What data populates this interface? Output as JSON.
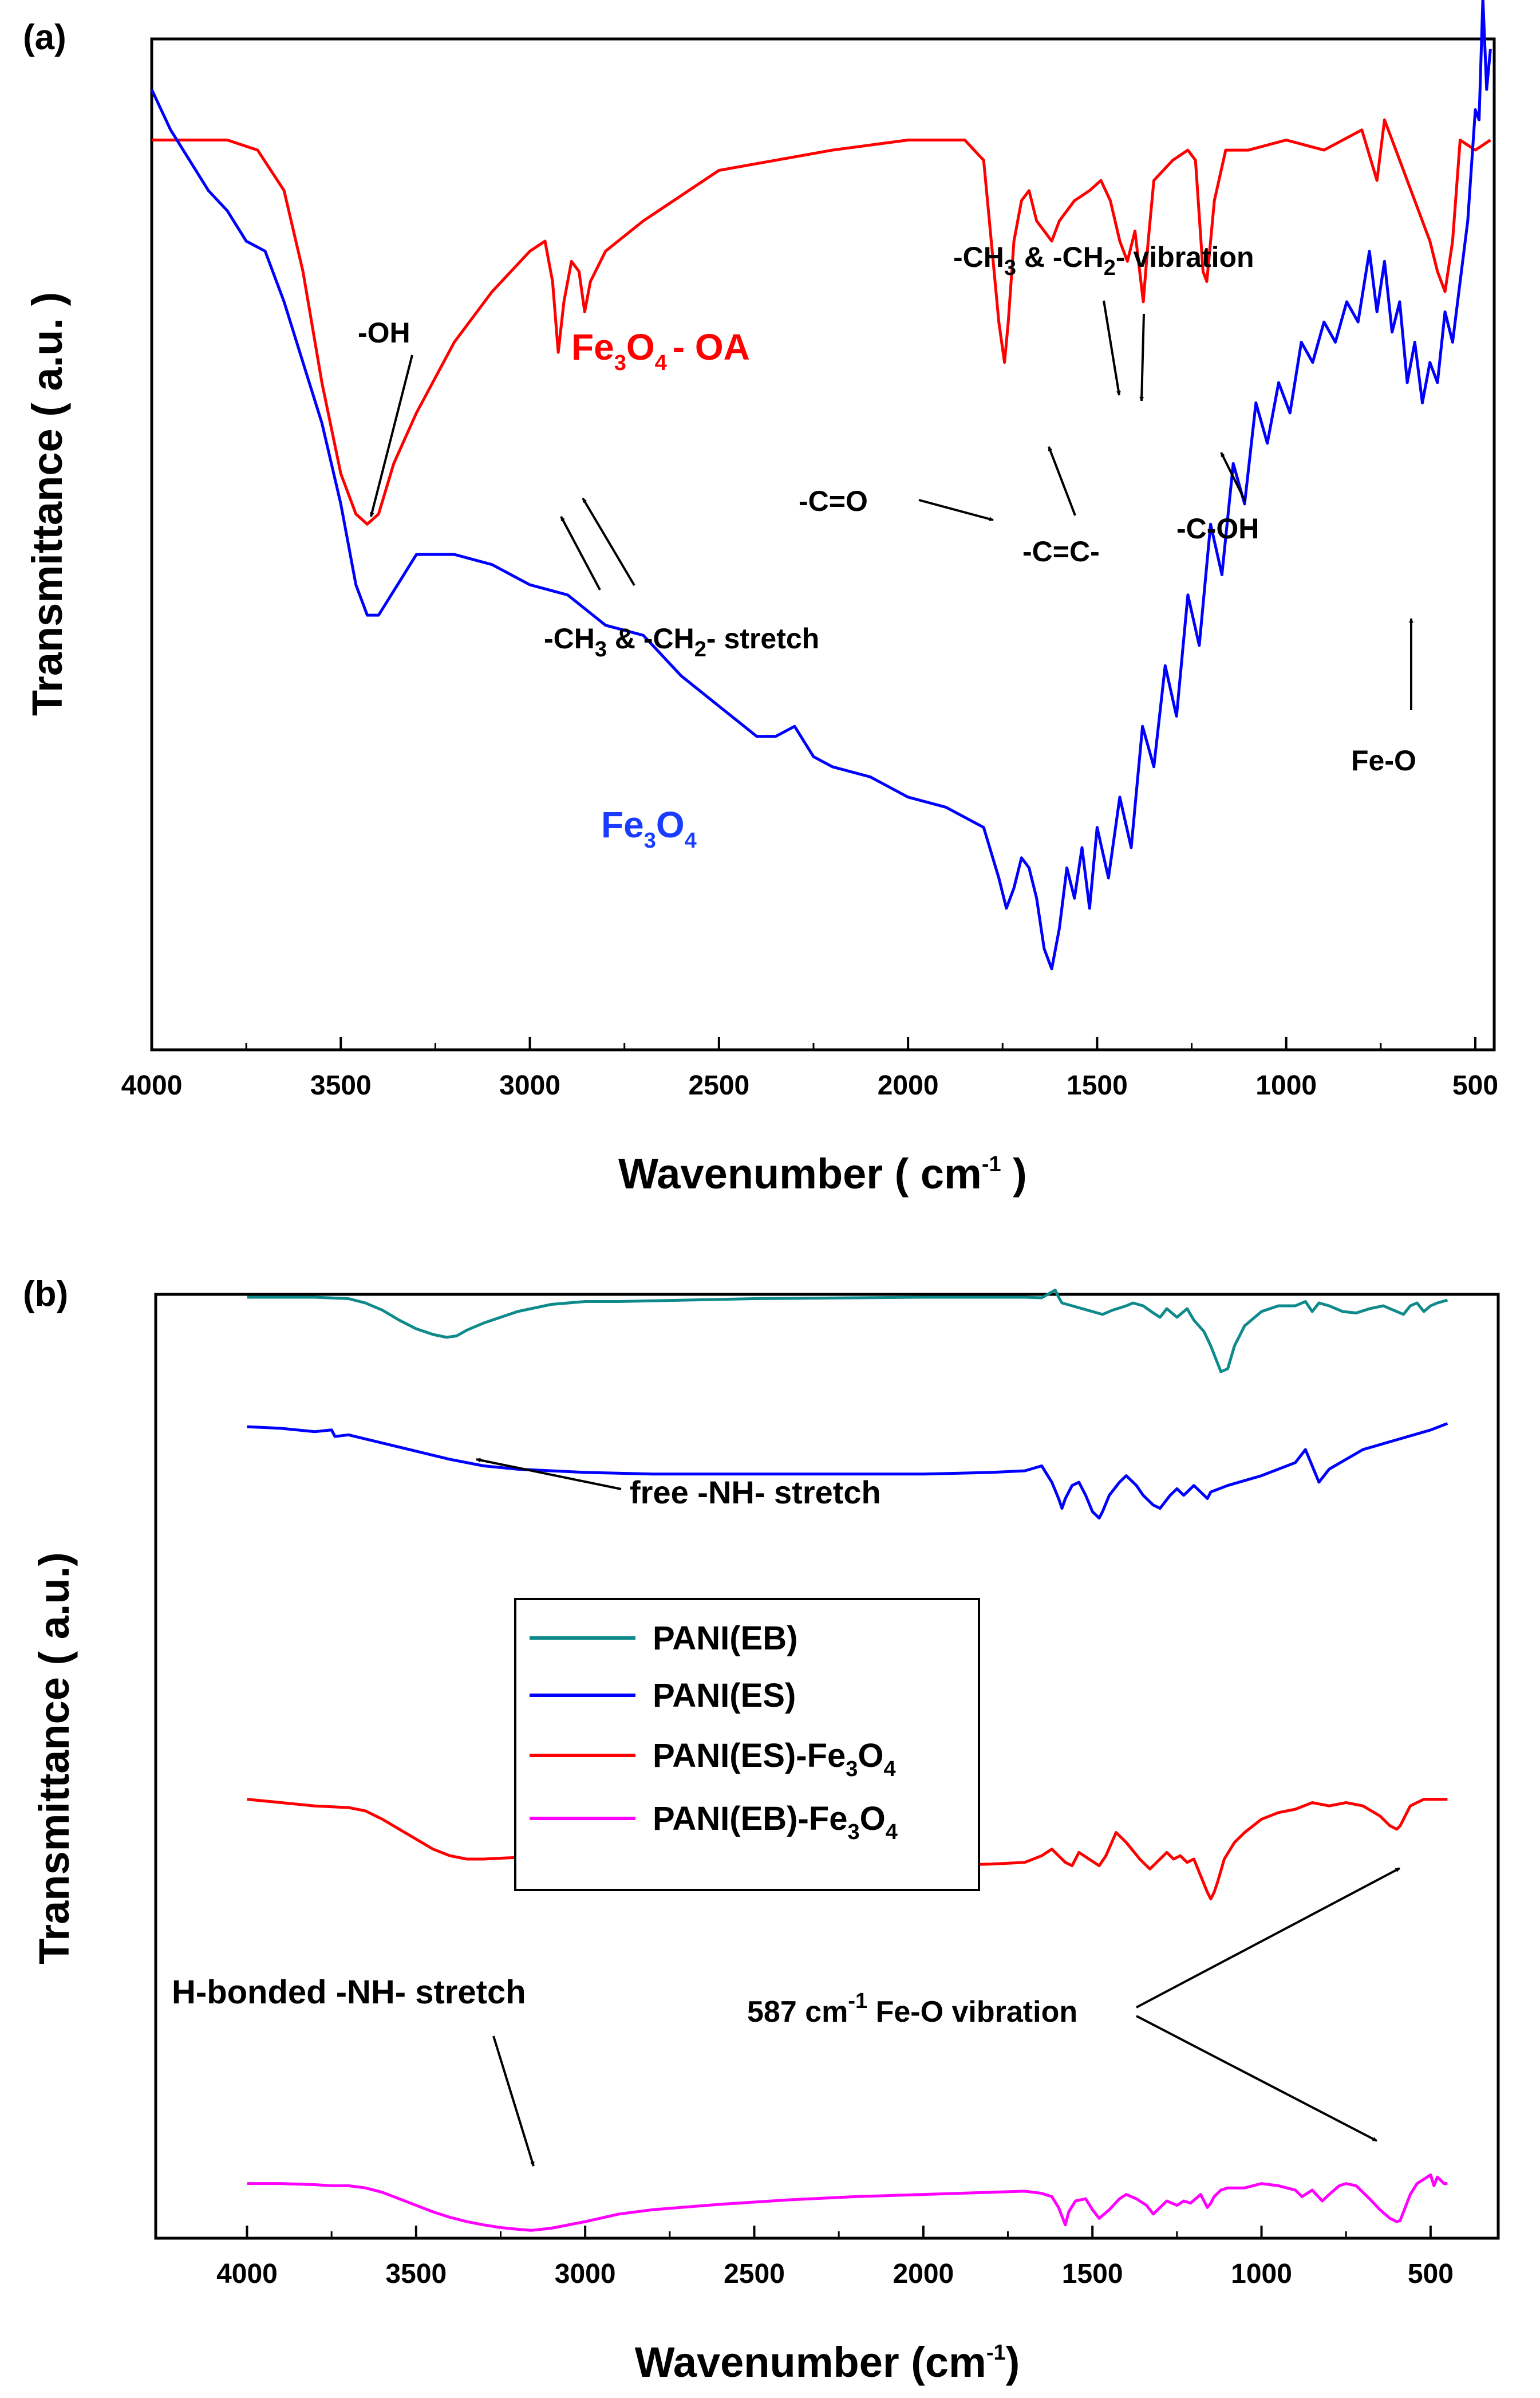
{
  "chart_data": [
    {
      "panel": "(a)",
      "type": "line",
      "xlabel": "Wavenumber ( cm",
      "xlabel_sup": "-1",
      "xlabel_end": " )",
      "ylabel": "Transmittance ( a.u. )",
      "xlim": [
        4000,
        450
      ],
      "x_reversed": true,
      "xticks": [
        4000,
        3500,
        3000,
        2500,
        2000,
        1500,
        1000,
        500
      ],
      "series": [
        {
          "name": "Fe3O4 - OA",
          "label_parts": [
            "Fe",
            "3",
            "O",
            "4",
            "- OA"
          ],
          "color": "#ff0000",
          "x": [
            4000,
            3800,
            3720,
            3650,
            3600,
            3550,
            3500,
            3460,
            3430,
            3400,
            3360,
            3300,
            3200,
            3100,
            3000,
            2960,
            2940,
            2925,
            2910,
            2890,
            2870,
            2855,
            2840,
            2800,
            2700,
            2500,
            2350,
            2200,
            2000,
            1850,
            1800,
            1780,
            1760,
            1745,
            1735,
            1720,
            1700,
            1680,
            1660,
            1640,
            1620,
            1600,
            1560,
            1520,
            1490,
            1465,
            1440,
            1420,
            1400,
            1378,
            1365,
            1350,
            1300,
            1260,
            1240,
            1220,
            1210,
            1190,
            1160,
            1100,
            1000,
            900,
            800,
            760,
            740,
            700,
            680,
            660,
            640,
            620,
            600,
            580,
            560,
            540,
            500,
            460
          ],
          "y": [
            0.9,
            0.9,
            0.89,
            0.85,
            0.77,
            0.66,
            0.57,
            0.53,
            0.52,
            0.53,
            0.58,
            0.63,
            0.7,
            0.75,
            0.79,
            0.8,
            0.76,
            0.69,
            0.74,
            0.78,
            0.77,
            0.73,
            0.76,
            0.79,
            0.82,
            0.87,
            0.88,
            0.89,
            0.9,
            0.9,
            0.88,
            0.8,
            0.72,
            0.68,
            0.72,
            0.8,
            0.84,
            0.85,
            0.82,
            0.81,
            0.8,
            0.82,
            0.84,
            0.85,
            0.86,
            0.84,
            0.8,
            0.78,
            0.81,
            0.74,
            0.8,
            0.86,
            0.88,
            0.89,
            0.88,
            0.77,
            0.76,
            0.84,
            0.89,
            0.89,
            0.9,
            0.89,
            0.91,
            0.86,
            0.92,
            0.88,
            0.86,
            0.84,
            0.82,
            0.8,
            0.77,
            0.75,
            0.8,
            0.9,
            0.89,
            0.9
          ]
        },
        {
          "name": "Fe3O4",
          "label_parts": [
            "Fe",
            "3",
            "O",
            "4",
            ""
          ],
          "color": "#0000ff",
          "x": [
            4000,
            3950,
            3900,
            3850,
            3800,
            3750,
            3700,
            3650,
            3600,
            3550,
            3500,
            3460,
            3430,
            3400,
            3350,
            3300,
            3200,
            3100,
            3000,
            2900,
            2800,
            2700,
            2600,
            2500,
            2400,
            2350,
            2300,
            2250,
            2200,
            2100,
            2000,
            1900,
            1800,
            1760,
            1740,
            1720,
            1700,
            1680,
            1660,
            1640,
            1620,
            1600,
            1580,
            1560,
            1540,
            1520,
            1500,
            1470,
            1440,
            1410,
            1380,
            1350,
            1320,
            1290,
            1260,
            1230,
            1200,
            1170,
            1140,
            1110,
            1080,
            1050,
            1020,
            990,
            960,
            930,
            900,
            870,
            840,
            810,
            780,
            760,
            740,
            720,
            700,
            680,
            660,
            640,
            620,
            600,
            580,
            560,
            540,
            520,
            500,
            490,
            480,
            470,
            460
          ],
          "y": [
            0.95,
            0.91,
            0.88,
            0.85,
            0.83,
            0.8,
            0.79,
            0.74,
            0.68,
            0.62,
            0.54,
            0.46,
            0.43,
            0.43,
            0.46,
            0.49,
            0.49,
            0.48,
            0.46,
            0.45,
            0.42,
            0.41,
            0.37,
            0.34,
            0.31,
            0.31,
            0.32,
            0.29,
            0.28,
            0.27,
            0.25,
            0.24,
            0.22,
            0.17,
            0.14,
            0.16,
            0.19,
            0.18,
            0.15,
            0.1,
            0.08,
            0.12,
            0.18,
            0.15,
            0.2,
            0.14,
            0.22,
            0.17,
            0.25,
            0.2,
            0.32,
            0.28,
            0.38,
            0.33,
            0.45,
            0.4,
            0.52,
            0.47,
            0.58,
            0.54,
            0.64,
            0.6,
            0.66,
            0.63,
            0.7,
            0.68,
            0.72,
            0.7,
            0.74,
            0.72,
            0.79,
            0.73,
            0.78,
            0.71,
            0.74,
            0.66,
            0.7,
            0.64,
            0.68,
            0.66,
            0.73,
            0.7,
            0.76,
            0.82,
            0.93,
            0.92,
            1.04,
            0.95,
            0.99
          ]
        }
      ],
      "annotations": [
        {
          "id": "oh",
          "text": "-OH"
        },
        {
          "id": "ch-stretch",
          "parts": [
            "-CH",
            "3",
            " & -CH",
            "2",
            "- stretch"
          ]
        },
        {
          "id": "ch-vibration",
          "parts": [
            "-CH",
            "3",
            " & -CH",
            "2",
            "- vibration"
          ]
        },
        {
          "id": "co",
          "text": "-C=O"
        },
        {
          "id": "cc",
          "text": "-C=C-"
        },
        {
          "id": "coh",
          "text": "-C-OH"
        },
        {
          "id": "feo",
          "text": "Fe-O"
        }
      ]
    },
    {
      "panel": "(b)",
      "type": "line",
      "xlabel": "Wavenumber (cm",
      "xlabel_sup": "-1",
      "xlabel_end": ")",
      "ylabel": "Transmittance ( a.u.)",
      "xlim": [
        4270,
        300
      ],
      "x_reversed": true,
      "xticks": [
        4000,
        3500,
        3000,
        2500,
        2000,
        1500,
        1000,
        500
      ],
      "legend": {
        "position": "center-left",
        "entries": [
          {
            "name": "PANI(EB)",
            "parts": [
              "PANI(EB)"
            ],
            "color": "#0f8a8a"
          },
          {
            "name": "PANI(ES)",
            "parts": [
              "PANI(ES)"
            ],
            "color": "#0000ff"
          },
          {
            "name": "PANI(ES)-Fe3O4",
            "parts": [
              "PANI(ES)-Fe",
              "3",
              "O",
              "4"
            ],
            "color": "#ff0000"
          },
          {
            "name": "PANI(EB)-Fe3O4",
            "parts": [
              "PANI(EB)-Fe",
              "3",
              "O",
              "4"
            ],
            "color": "#ff00ff"
          }
        ]
      },
      "series": [
        {
          "name": "PANI(EB)",
          "color": "#0f8a8a",
          "x": [
            4000,
            3800,
            3700,
            3650,
            3600,
            3550,
            3500,
            3450,
            3410,
            3380,
            3350,
            3300,
            3200,
            3100,
            3000,
            2900,
            2700,
            2500,
            2000,
            1700,
            1650,
            1610,
            1600,
            1590,
            1560,
            1500,
            1470,
            1440,
            1400,
            1380,
            1350,
            1320,
            1300,
            1280,
            1250,
            1220,
            1200,
            1170,
            1150,
            1130,
            1120,
            1100,
            1080,
            1050,
            1000,
            950,
            900,
            870,
            850,
            830,
            800,
            760,
            720,
            680,
            640,
            600,
            580,
            560,
            540,
            520,
            500,
            480,
            450
          ],
          "y": [
            0.95,
            0.95,
            0.945,
            0.93,
            0.905,
            0.87,
            0.84,
            0.82,
            0.81,
            0.815,
            0.835,
            0.86,
            0.9,
            0.925,
            0.935,
            0.935,
            0.94,
            0.945,
            0.95,
            0.95,
            0.948,
            0.975,
            0.95,
            0.93,
            0.92,
            0.9,
            0.89,
            0.905,
            0.92,
            0.93,
            0.92,
            0.895,
            0.88,
            0.91,
            0.88,
            0.91,
            0.87,
            0.83,
            0.78,
            0.72,
            0.69,
            0.7,
            0.78,
            0.85,
            0.9,
            0.92,
            0.92,
            0.935,
            0.9,
            0.93,
            0.92,
            0.9,
            0.895,
            0.91,
            0.92,
            0.9,
            0.89,
            0.92,
            0.93,
            0.9,
            0.92,
            0.93,
            0.94
          ]
        },
        {
          "name": "PANI(ES)",
          "color": "#0000ff",
          "x": [
            4000,
            3900,
            3800,
            3750,
            3740,
            3700,
            3600,
            3500,
            3400,
            3300,
            3200,
            3000,
            2800,
            2500,
            2000,
            1800,
            1700,
            1650,
            1620,
            1600,
            1590,
            1580,
            1560,
            1540,
            1520,
            1500,
            1480,
            1470,
            1450,
            1420,
            1400,
            1370,
            1350,
            1320,
            1300,
            1270,
            1250,
            1230,
            1200,
            1180,
            1160,
            1150,
            1100,
            1000,
            900,
            870,
            850,
            830,
            800,
            750,
            700,
            600,
            500,
            450
          ],
          "y": [
            0.77,
            0.765,
            0.755,
            0.76,
            0.74,
            0.745,
            0.72,
            0.695,
            0.67,
            0.65,
            0.64,
            0.63,
            0.625,
            0.625,
            0.625,
            0.63,
            0.635,
            0.65,
            0.6,
            0.55,
            0.52,
            0.55,
            0.59,
            0.6,
            0.56,
            0.51,
            0.49,
            0.51,
            0.56,
            0.6,
            0.62,
            0.59,
            0.56,
            0.53,
            0.52,
            0.56,
            0.58,
            0.56,
            0.59,
            0.57,
            0.55,
            0.57,
            0.59,
            0.62,
            0.66,
            0.7,
            0.65,
            0.6,
            0.64,
            0.67,
            0.7,
            0.73,
            0.76,
            0.78
          ]
        },
        {
          "name": "PANI(ES)-Fe3O4",
          "color": "#ff0000",
          "x": [
            4000,
            3900,
            3800,
            3700,
            3650,
            3600,
            3550,
            3500,
            3450,
            3400,
            3350,
            3300,
            3200,
            3100,
            3000,
            2950,
            2900,
            2800,
            2500,
            2000,
            1800,
            1700,
            1650,
            1620,
            1600,
            1580,
            1560,
            1540,
            1510,
            1480,
            1460,
            1430,
            1400,
            1360,
            1330,
            1300,
            1280,
            1260,
            1240,
            1220,
            1200,
            1180,
            1160,
            1150,
            1140,
            1130,
            1110,
            1080,
            1050,
            1000,
            950,
            900,
            850,
            800,
            750,
            700,
            650,
            620,
            600,
            590,
            580,
            560,
            540,
            520,
            500,
            450
          ],
          "y": [
            0.48,
            0.47,
            0.46,
            0.455,
            0.445,
            0.42,
            0.39,
            0.36,
            0.33,
            0.31,
            0.3,
            0.3,
            0.305,
            0.3,
            0.29,
            0.28,
            0.275,
            0.28,
            0.28,
            0.28,
            0.285,
            0.29,
            0.31,
            0.33,
            0.31,
            0.29,
            0.28,
            0.32,
            0.3,
            0.28,
            0.31,
            0.38,
            0.35,
            0.3,
            0.27,
            0.3,
            0.32,
            0.3,
            0.31,
            0.29,
            0.3,
            0.25,
            0.2,
            0.18,
            0.2,
            0.23,
            0.3,
            0.35,
            0.38,
            0.42,
            0.44,
            0.45,
            0.47,
            0.46,
            0.47,
            0.46,
            0.43,
            0.4,
            0.39,
            0.4,
            0.42,
            0.46,
            0.47,
            0.48,
            0.48,
            0.48
          ]
        },
        {
          "name": "PANI(EB)-Fe3O4",
          "color": "#ff00ff",
          "x": [
            4000,
            3900,
            3800,
            3750,
            3700,
            3650,
            3600,
            3550,
            3500,
            3450,
            3400,
            3350,
            3300,
            3250,
            3200,
            3160,
            3100,
            3000,
            2900,
            2800,
            2600,
            2400,
            2200,
            2000,
            1800,
            1700,
            1650,
            1620,
            1600,
            1590,
            1580,
            1570,
            1550,
            1520,
            1500,
            1480,
            1450,
            1420,
            1400,
            1370,
            1340,
            1320,
            1300,
            1280,
            1250,
            1230,
            1210,
            1180,
            1160,
            1150,
            1140,
            1120,
            1100,
            1050,
            1000,
            950,
            900,
            880,
            850,
            820,
            800,
            770,
            750,
            720,
            700,
            680,
            650,
            620,
            600,
            590,
            580,
            560,
            540,
            520,
            500,
            490,
            480,
            460,
            450
          ],
          "y": [
            0.23,
            0.23,
            0.225,
            0.22,
            0.22,
            0.21,
            0.19,
            0.16,
            0.13,
            0.1,
            0.075,
            0.055,
            0.04,
            0.028,
            0.02,
            0.015,
            0.025,
            0.055,
            0.09,
            0.11,
            0.135,
            0.155,
            0.17,
            0.18,
            0.19,
            0.195,
            0.185,
            0.17,
            0.12,
            0.08,
            0.04,
            0.1,
            0.15,
            0.16,
            0.11,
            0.07,
            0.11,
            0.16,
            0.18,
            0.16,
            0.13,
            0.09,
            0.12,
            0.15,
            0.13,
            0.15,
            0.14,
            0.18,
            0.12,
            0.14,
            0.17,
            0.2,
            0.21,
            0.21,
            0.23,
            0.22,
            0.2,
            0.17,
            0.2,
            0.15,
            0.18,
            0.22,
            0.23,
            0.22,
            0.19,
            0.16,
            0.11,
            0.07,
            0.055,
            0.06,
            0.1,
            0.18,
            0.23,
            0.25,
            0.27,
            0.22,
            0.26,
            0.23,
            0.23
          ]
        }
      ],
      "annotations": [
        {
          "id": "free-nh",
          "text": "free -NH- stretch"
        },
        {
          "id": "hbond-nh",
          "text": "H-bonded -NH- stretch"
        },
        {
          "id": "feo-vib",
          "parts": [
            "587 cm",
            "-1",
            "  Fe-O vibration"
          ]
        }
      ]
    }
  ]
}
